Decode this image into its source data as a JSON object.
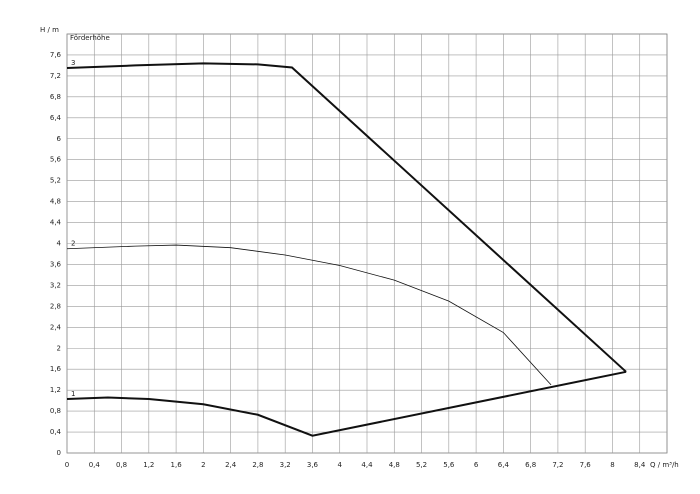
{
  "chart_data": {
    "type": "line",
    "y_label": "H / m",
    "y_title": "Förderhöhe",
    "x_label": "Q / m³/h",
    "xlim": [
      0,
      8.8
    ],
    "ylim": [
      0,
      8
    ],
    "grid": true,
    "xticks": [
      0,
      {
        "value": 0.4,
        "label": "0,4"
      },
      {
        "value": 0.8,
        "label": "0,8"
      },
      {
        "value": 1.2,
        "label": "1,2"
      },
      {
        "value": 1.6,
        "label": "1,6"
      },
      2,
      {
        "value": 2.4,
        "label": "2,4"
      },
      {
        "value": 2.8,
        "label": "2,8"
      },
      {
        "value": 3.2,
        "label": "3,2"
      },
      {
        "value": 3.6,
        "label": "3,6"
      },
      4,
      {
        "value": 4.4,
        "label": "4,4"
      },
      {
        "value": 4.8,
        "label": "4,8"
      },
      {
        "value": 5.2,
        "label": "5,2"
      },
      {
        "value": 5.6,
        "label": "5,6"
      },
      6,
      {
        "value": 6.4,
        "label": "6,4"
      },
      {
        "value": 6.8,
        "label": "6,8"
      },
      {
        "value": 7.2,
        "label": "7,2"
      },
      {
        "value": 7.6,
        "label": "7,6"
      },
      8,
      {
        "value": 8.4,
        "label": "8,4"
      }
    ],
    "yticks": [
      0,
      {
        "value": 0.4,
        "label": "0,4"
      },
      {
        "value": 0.8,
        "label": "0,8"
      },
      {
        "value": 1.2,
        "label": "1,2"
      },
      {
        "value": 1.6,
        "label": "1,6"
      },
      2,
      {
        "value": 2.4,
        "label": "2,4"
      },
      {
        "value": 2.8,
        "label": "2,8"
      },
      {
        "value": 3.2,
        "label": "3,2"
      },
      {
        "value": 3.6,
        "label": "3,6"
      },
      4,
      {
        "value": 4.4,
        "label": "4,4"
      },
      {
        "value": 4.8,
        "label": "4,8"
      },
      {
        "value": 5.2,
        "label": "5,2"
      },
      {
        "value": 5.6,
        "label": "5,6"
      },
      6,
      {
        "value": 6.4,
        "label": "6,4"
      },
      {
        "value": 6.8,
        "label": "6,8"
      },
      {
        "value": 7.2,
        "label": "7,2"
      },
      {
        "value": 7.6,
        "label": "7,6"
      }
    ],
    "series": [
      {
        "name": "3",
        "color": "#111111",
        "line_width": 2,
        "x": [
          0,
          1,
          2,
          2.8,
          3.3,
          8.2
        ],
        "values": [
          7.35,
          7.4,
          7.44,
          7.42,
          7.36,
          1.55
        ]
      },
      {
        "name": "2",
        "color": "#111111",
        "line_width": 0.8,
        "x": [
          0,
          1,
          1.6,
          2.4,
          3.2,
          4,
          4.8,
          5.6,
          6.4,
          7.1
        ],
        "values": [
          3.9,
          3.95,
          3.97,
          3.92,
          3.78,
          3.58,
          3.3,
          2.9,
          2.3,
          1.3
        ]
      },
      {
        "name": "1",
        "color": "#111111",
        "line_width": 2,
        "x": [
          0,
          0.6,
          1.2,
          2,
          2.8,
          3.6,
          8.2
        ],
        "values": [
          1.03,
          1.06,
          1.03,
          0.93,
          0.73,
          0.33,
          1.55
        ]
      }
    ]
  }
}
